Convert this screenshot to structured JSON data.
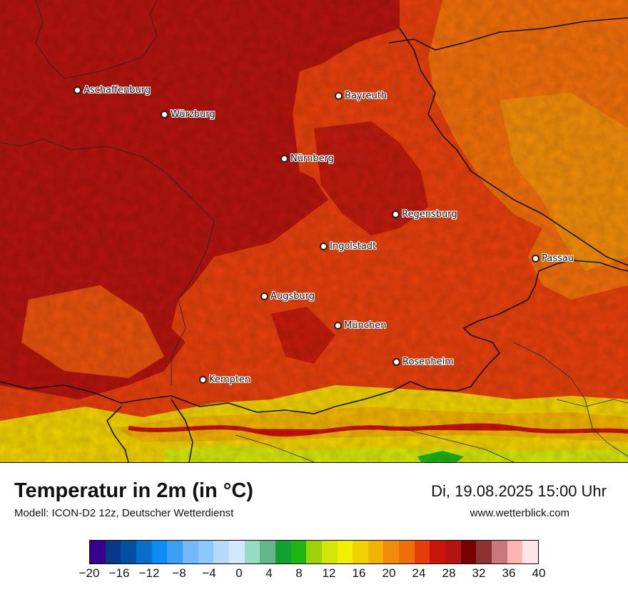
{
  "map": {
    "cities": [
      {
        "name": "Aschaffenburg"
      },
      {
        "name": "Würzburg"
      },
      {
        "name": "Bayreuth"
      },
      {
        "name": "Nürnberg"
      },
      {
        "name": "Regensburg"
      },
      {
        "name": "Ingolstadt"
      },
      {
        "name": "Passau"
      },
      {
        "name": "Augsburg"
      },
      {
        "name": "München"
      },
      {
        "name": "Rosenheim"
      },
      {
        "name": "Kempten"
      }
    ]
  },
  "footer": {
    "title": "Temperatur in 2m (in °C)",
    "subtitle": "Modell: ICON-D2 12z, Deutscher Wetterdienst",
    "datetime": "Di, 19.08.2025 15:00 Uhr",
    "website": "www.wetterblick.com"
  },
  "legend": {
    "ticks": [
      "−20",
      "−16",
      "−12",
      "−8",
      "−4",
      "0",
      "4",
      "8",
      "12",
      "16",
      "20",
      "24",
      "28",
      "32",
      "36",
      "40"
    ],
    "colors": [
      "#34008c",
      "#06398a",
      "#0050a0",
      "#0a6ec8",
      "#0a8cf0",
      "#3c9ef5",
      "#73b9fa",
      "#8cc8fa",
      "#b4dcfa",
      "#d2e8fc",
      "#96dcbe",
      "#64b48c",
      "#14a032",
      "#1eb414",
      "#9bd20a",
      "#d2e60a",
      "#f0f000",
      "#f0d200",
      "#f0b400",
      "#f08c0a",
      "#f06e0a",
      "#e63c0a",
      "#c8140a",
      "#b4140f",
      "#780000",
      "#8c3232",
      "#c87878",
      "#ffb4b4",
      "#ffe6e6"
    ]
  }
}
